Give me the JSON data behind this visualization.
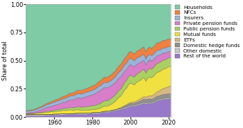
{
  "years": [
    1945,
    1946,
    1947,
    1948,
    1949,
    1950,
    1951,
    1952,
    1953,
    1954,
    1955,
    1956,
    1957,
    1958,
    1959,
    1960,
    1961,
    1962,
    1963,
    1964,
    1965,
    1966,
    1967,
    1968,
    1969,
    1970,
    1971,
    1972,
    1973,
    1974,
    1975,
    1976,
    1977,
    1978,
    1979,
    1980,
    1981,
    1982,
    1983,
    1984,
    1985,
    1986,
    1987,
    1988,
    1989,
    1990,
    1991,
    1992,
    1993,
    1994,
    1995,
    1996,
    1997,
    1998,
    1999,
    2000,
    2001,
    2002,
    2003,
    2004,
    2005,
    2006,
    2007,
    2008,
    2009,
    2010,
    2011,
    2012,
    2013,
    2014,
    2015,
    2016,
    2017,
    2018,
    2019,
    2020,
    2021
  ],
  "series": {
    "Rest of the world": [
      0.01,
      0.01,
      0.01,
      0.01,
      0.01,
      0.01,
      0.01,
      0.01,
      0.01,
      0.01,
      0.012,
      0.012,
      0.012,
      0.013,
      0.014,
      0.015,
      0.015,
      0.015,
      0.016,
      0.017,
      0.018,
      0.018,
      0.019,
      0.02,
      0.02,
      0.02,
      0.021,
      0.022,
      0.022,
      0.022,
      0.022,
      0.022,
      0.023,
      0.024,
      0.025,
      0.028,
      0.028,
      0.028,
      0.029,
      0.03,
      0.037,
      0.039,
      0.04,
      0.04,
      0.041,
      0.048,
      0.051,
      0.054,
      0.058,
      0.062,
      0.062,
      0.069,
      0.075,
      0.079,
      0.089,
      0.096,
      0.096,
      0.095,
      0.101,
      0.106,
      0.111,
      0.117,
      0.122,
      0.115,
      0.121,
      0.123,
      0.121,
      0.128,
      0.139,
      0.148,
      0.152,
      0.156,
      0.162,
      0.162,
      0.167,
      0.168,
      0.172
    ],
    "Other domestic": [
      0.01,
      0.01,
      0.01,
      0.01,
      0.01,
      0.01,
      0.01,
      0.01,
      0.01,
      0.01,
      0.01,
      0.01,
      0.01,
      0.01,
      0.01,
      0.01,
      0.01,
      0.01,
      0.01,
      0.01,
      0.01,
      0.01,
      0.01,
      0.01,
      0.01,
      0.01,
      0.01,
      0.01,
      0.01,
      0.01,
      0.01,
      0.01,
      0.01,
      0.01,
      0.01,
      0.01,
      0.01,
      0.01,
      0.01,
      0.01,
      0.01,
      0.01,
      0.01,
      0.01,
      0.01,
      0.01,
      0.01,
      0.01,
      0.01,
      0.01,
      0.01,
      0.01,
      0.01,
      0.01,
      0.01,
      0.01,
      0.01,
      0.01,
      0.01,
      0.01,
      0.01,
      0.01,
      0.01,
      0.01,
      0.01,
      0.01,
      0.01,
      0.01,
      0.01,
      0.01,
      0.01,
      0.01,
      0.01,
      0.01,
      0.01,
      0.01,
      0.01
    ],
    "Domestic hedge funds": [
      0.0,
      0.0,
      0.0,
      0.0,
      0.0,
      0.0,
      0.0,
      0.0,
      0.0,
      0.0,
      0.0,
      0.0,
      0.0,
      0.0,
      0.0,
      0.0,
      0.0,
      0.0,
      0.0,
      0.0,
      0.0,
      0.0,
      0.0,
      0.0,
      0.0,
      0.0,
      0.0,
      0.0,
      0.0,
      0.0,
      0.0,
      0.0,
      0.0,
      0.0,
      0.0,
      0.0,
      0.0,
      0.0,
      0.0,
      0.0,
      0.0,
      0.0,
      0.0,
      0.0,
      0.0,
      0.0,
      0.0,
      0.0,
      0.0,
      0.005,
      0.007,
      0.01,
      0.013,
      0.015,
      0.018,
      0.018,
      0.018,
      0.018,
      0.02,
      0.022,
      0.023,
      0.026,
      0.028,
      0.028,
      0.03,
      0.032,
      0.031,
      0.032,
      0.034,
      0.035,
      0.036,
      0.037,
      0.038,
      0.037,
      0.038,
      0.038,
      0.038
    ],
    "ETFs": [
      0.0,
      0.0,
      0.0,
      0.0,
      0.0,
      0.0,
      0.0,
      0.0,
      0.0,
      0.0,
      0.0,
      0.0,
      0.0,
      0.0,
      0.0,
      0.0,
      0.0,
      0.0,
      0.0,
      0.0,
      0.0,
      0.0,
      0.0,
      0.0,
      0.0,
      0.0,
      0.0,
      0.0,
      0.0,
      0.0,
      0.0,
      0.0,
      0.0,
      0.0,
      0.0,
      0.0,
      0.0,
      0.0,
      0.0,
      0.0,
      0.0,
      0.0,
      0.0,
      0.0,
      0.001,
      0.001,
      0.001,
      0.001,
      0.002,
      0.002,
      0.003,
      0.004,
      0.006,
      0.007,
      0.009,
      0.01,
      0.011,
      0.012,
      0.014,
      0.016,
      0.018,
      0.021,
      0.023,
      0.022,
      0.026,
      0.028,
      0.03,
      0.033,
      0.038,
      0.042,
      0.045,
      0.05,
      0.055,
      0.058,
      0.062,
      0.068,
      0.072
    ],
    "Mutual funds": [
      0.01,
      0.01,
      0.01,
      0.01,
      0.01,
      0.012,
      0.013,
      0.014,
      0.015,
      0.017,
      0.019,
      0.02,
      0.02,
      0.021,
      0.022,
      0.023,
      0.025,
      0.025,
      0.027,
      0.029,
      0.03,
      0.029,
      0.031,
      0.033,
      0.032,
      0.03,
      0.031,
      0.032,
      0.03,
      0.027,
      0.027,
      0.028,
      0.027,
      0.027,
      0.027,
      0.027,
      0.027,
      0.03,
      0.035,
      0.035,
      0.04,
      0.046,
      0.046,
      0.047,
      0.053,
      0.055,
      0.065,
      0.073,
      0.088,
      0.097,
      0.105,
      0.122,
      0.141,
      0.148,
      0.173,
      0.178,
      0.166,
      0.155,
      0.167,
      0.17,
      0.168,
      0.172,
      0.168,
      0.142,
      0.164,
      0.173,
      0.166,
      0.172,
      0.179,
      0.181,
      0.178,
      0.178,
      0.181,
      0.177,
      0.182,
      0.189,
      0.185
    ],
    "Public pension funds": [
      0.0,
      0.0,
      0.0,
      0.0,
      0.0,
      0.002,
      0.003,
      0.004,
      0.005,
      0.006,
      0.007,
      0.008,
      0.009,
      0.01,
      0.011,
      0.012,
      0.013,
      0.014,
      0.015,
      0.016,
      0.017,
      0.018,
      0.019,
      0.02,
      0.021,
      0.022,
      0.024,
      0.026,
      0.027,
      0.027,
      0.028,
      0.03,
      0.031,
      0.033,
      0.034,
      0.035,
      0.036,
      0.038,
      0.04,
      0.042,
      0.043,
      0.046,
      0.047,
      0.048,
      0.05,
      0.051,
      0.054,
      0.056,
      0.059,
      0.061,
      0.063,
      0.065,
      0.069,
      0.07,
      0.072,
      0.073,
      0.072,
      0.071,
      0.073,
      0.075,
      0.075,
      0.076,
      0.076,
      0.072,
      0.076,
      0.079,
      0.078,
      0.08,
      0.082,
      0.083,
      0.083,
      0.083,
      0.083,
      0.081,
      0.082,
      0.082,
      0.082
    ],
    "Private pension funds": [
      0.005,
      0.006,
      0.007,
      0.008,
      0.01,
      0.012,
      0.015,
      0.018,
      0.021,
      0.025,
      0.029,
      0.033,
      0.036,
      0.038,
      0.04,
      0.042,
      0.045,
      0.047,
      0.05,
      0.053,
      0.056,
      0.058,
      0.062,
      0.066,
      0.068,
      0.07,
      0.073,
      0.077,
      0.079,
      0.079,
      0.082,
      0.086,
      0.089,
      0.092,
      0.095,
      0.098,
      0.101,
      0.107,
      0.112,
      0.114,
      0.116,
      0.118,
      0.116,
      0.114,
      0.115,
      0.112,
      0.112,
      0.111,
      0.112,
      0.11,
      0.108,
      0.104,
      0.1,
      0.096,
      0.097,
      0.098,
      0.095,
      0.091,
      0.09,
      0.088,
      0.086,
      0.083,
      0.08,
      0.074,
      0.076,
      0.077,
      0.075,
      0.075,
      0.073,
      0.071,
      0.069,
      0.068,
      0.066,
      0.063,
      0.062,
      0.06,
      0.058
    ],
    "Insurers": [
      0.015,
      0.016,
      0.017,
      0.018,
      0.018,
      0.019,
      0.02,
      0.021,
      0.022,
      0.023,
      0.024,
      0.025,
      0.026,
      0.027,
      0.028,
      0.029,
      0.03,
      0.031,
      0.031,
      0.032,
      0.032,
      0.033,
      0.034,
      0.035,
      0.035,
      0.036,
      0.037,
      0.038,
      0.038,
      0.038,
      0.038,
      0.039,
      0.039,
      0.04,
      0.04,
      0.041,
      0.041,
      0.042,
      0.043,
      0.044,
      0.044,
      0.045,
      0.046,
      0.047,
      0.047,
      0.048,
      0.049,
      0.05,
      0.051,
      0.052,
      0.053,
      0.054,
      0.056,
      0.057,
      0.058,
      0.059,
      0.057,
      0.056,
      0.056,
      0.056,
      0.055,
      0.055,
      0.054,
      0.051,
      0.051,
      0.05,
      0.049,
      0.05,
      0.05,
      0.05,
      0.049,
      0.049,
      0.048,
      0.047,
      0.047,
      0.047,
      0.047
    ],
    "NFCs": [
      0.005,
      0.005,
      0.006,
      0.006,
      0.007,
      0.007,
      0.008,
      0.008,
      0.009,
      0.01,
      0.011,
      0.012,
      0.013,
      0.014,
      0.015,
      0.016,
      0.017,
      0.018,
      0.019,
      0.02,
      0.021,
      0.022,
      0.024,
      0.025,
      0.026,
      0.027,
      0.028,
      0.03,
      0.031,
      0.032,
      0.032,
      0.033,
      0.034,
      0.035,
      0.036,
      0.037,
      0.038,
      0.039,
      0.041,
      0.043,
      0.044,
      0.046,
      0.047,
      0.048,
      0.049,
      0.05,
      0.052,
      0.053,
      0.055,
      0.056,
      0.058,
      0.059,
      0.061,
      0.062,
      0.063,
      0.064,
      0.063,
      0.062,
      0.063,
      0.064,
      0.065,
      0.066,
      0.067,
      0.064,
      0.066,
      0.067,
      0.066,
      0.067,
      0.069,
      0.07,
      0.07,
      0.071,
      0.072,
      0.071,
      0.072,
      0.072,
      0.072
    ],
    "Households": [
      0.945,
      0.943,
      0.94,
      0.938,
      0.935,
      0.928,
      0.921,
      0.915,
      0.908,
      0.899,
      0.888,
      0.88,
      0.874,
      0.867,
      0.86,
      0.853,
      0.845,
      0.84,
      0.832,
      0.823,
      0.816,
      0.812,
      0.801,
      0.791,
      0.788,
      0.785,
      0.776,
      0.765,
      0.763,
      0.765,
      0.761,
      0.752,
      0.747,
      0.739,
      0.733,
      0.724,
      0.719,
      0.707,
      0.69,
      0.681,
      0.666,
      0.65,
      0.648,
      0.646,
      0.634,
      0.625,
      0.606,
      0.592,
      0.565,
      0.545,
      0.529,
      0.503,
      0.479,
      0.463,
      0.439,
      0.434,
      0.442,
      0.45,
      0.432,
      0.419,
      0.409,
      0.394,
      0.382,
      0.422,
      0.4,
      0.391,
      0.404,
      0.393,
      0.376,
      0.36,
      0.358,
      0.348,
      0.335,
      0.334,
      0.328,
      0.326,
      0.324
    ]
  },
  "colors": {
    "Households": "#7ecba5",
    "NFCs": "#f08040",
    "Insurers": "#9ab4d8",
    "Private pension funds": "#d87dc8",
    "Public pension funds": "#aad060",
    "Mutual funds": "#f0e040",
    "ETFs": "#d4b882",
    "Domestic hedge funds": "#909090",
    "Other domestic": "#c8c8c8",
    "Rest of the world": "#9878c8"
  },
  "stack_order": [
    "Rest of the world",
    "Other domestic",
    "Domestic hedge funds",
    "ETFs",
    "Mutual funds",
    "Public pension funds",
    "Private pension funds",
    "Insurers",
    "NFCs",
    "Households"
  ],
  "legend_order": [
    "Households",
    "NFCs",
    "Insurers",
    "Private pension funds",
    "Public pension funds",
    "Mutual funds",
    "ETFs",
    "Domestic hedge funds",
    "Other domestic",
    "Rest of the world"
  ],
  "ylabel": "Share of total",
  "ylim": [
    0,
    1.0
  ],
  "xlim": [
    1945,
    2021
  ],
  "xticks": [
    1960,
    1980,
    2000,
    2020
  ],
  "yticks": [
    0.0,
    0.25,
    0.5,
    0.75,
    1.0
  ],
  "plot_bg": "#f0f0eb",
  "axis_fontsize": 6,
  "legend_fontsize": 5.2
}
